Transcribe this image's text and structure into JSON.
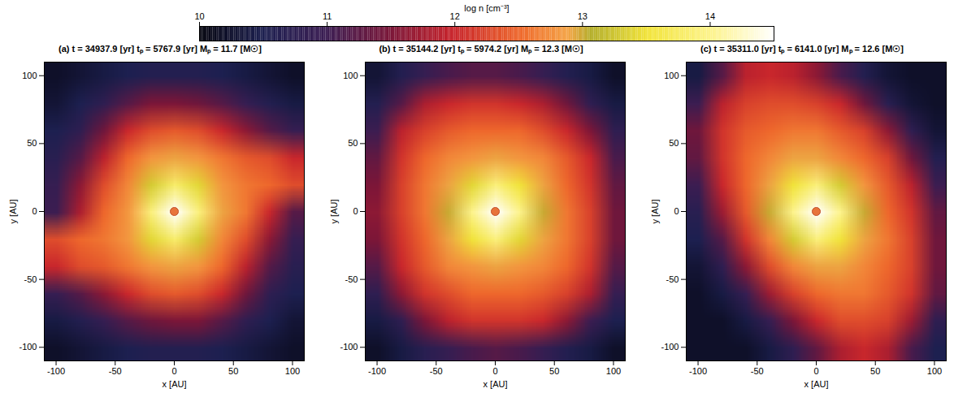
{
  "chart_data": {
    "type": "heatmap",
    "colorbar": {
      "label": "log n [cm⁻³]",
      "range": [
        10,
        14.5
      ],
      "ticks": [
        10,
        11,
        12,
        13,
        14
      ]
    },
    "panels": [
      {
        "title": "(a) t = 34937.9 [yr]   tₚ = 5767.9 [yr]   Mₚ = 11.7 [M☉]",
        "x_label": "x [AU]",
        "y_label": "y [AU]",
        "xlim": [
          -110,
          110
        ],
        "ylim": [
          -110,
          110
        ],
        "xticks": [
          -100,
          -50,
          0,
          50,
          100
        ],
        "yticks": [
          -100,
          -50,
          0,
          50,
          100
        ],
        "sink": {
          "x": 0,
          "y": 0
        },
        "x": [
          -100,
          -80,
          -60,
          -40,
          -20,
          0,
          20,
          40,
          60,
          80,
          100
        ],
        "y": [
          100,
          80,
          60,
          40,
          20,
          0,
          -20,
          -40,
          -60,
          -80,
          -100
        ],
        "values": [
          [
            10.2,
            10.3,
            10.4,
            10.5,
            10.6,
            10.6,
            10.6,
            10.5,
            10.4,
            10.3,
            10.2
          ],
          [
            10.3,
            10.5,
            10.8,
            11.2,
            11.5,
            11.5,
            11.4,
            11.2,
            10.9,
            10.6,
            10.4
          ],
          [
            10.5,
            10.8,
            11.4,
            12.0,
            12.3,
            12.4,
            12.3,
            12.0,
            11.6,
            11.2,
            10.9
          ],
          [
            10.7,
            11.2,
            11.9,
            12.5,
            12.8,
            12.9,
            12.8,
            12.6,
            12.4,
            12.3,
            12.0
          ],
          [
            10.9,
            11.6,
            12.3,
            12.7,
            13.3,
            13.8,
            13.4,
            12.8,
            12.6,
            12.5,
            12.3
          ],
          [
            11.0,
            11.8,
            12.5,
            12.8,
            13.9,
            14.5,
            13.9,
            12.9,
            12.6,
            12.0,
            11.2
          ],
          [
            12.3,
            12.5,
            12.6,
            12.8,
            13.4,
            13.8,
            13.3,
            12.7,
            12.3,
            11.6,
            10.9
          ],
          [
            12.0,
            12.3,
            12.4,
            12.6,
            12.8,
            12.9,
            12.8,
            12.5,
            11.9,
            11.2,
            10.7
          ],
          [
            10.9,
            11.2,
            11.6,
            12.0,
            12.3,
            12.4,
            12.3,
            12.0,
            11.4,
            10.8,
            10.5
          ],
          [
            10.4,
            10.6,
            10.9,
            11.2,
            11.4,
            11.5,
            11.5,
            11.2,
            10.8,
            10.5,
            10.3
          ],
          [
            10.2,
            10.3,
            10.4,
            10.5,
            10.6,
            10.6,
            10.6,
            10.5,
            10.4,
            10.3,
            10.2
          ]
        ]
      },
      {
        "title": "(b) t = 35144.2 [yr]   tₚ = 5974.2 [yr]   Mₚ = 12.3 [M☉]",
        "x_label": "x [AU]",
        "y_label": "y [AU]",
        "xlim": [
          -110,
          110
        ],
        "ylim": [
          -110,
          110
        ],
        "xticks": [
          -100,
          -50,
          0,
          50,
          100
        ],
        "yticks": [
          -100,
          -50,
          0,
          50,
          100
        ],
        "sink": {
          "x": 0,
          "y": 0
        },
        "x": [
          -100,
          -80,
          -60,
          -40,
          -20,
          0,
          20,
          40,
          60,
          80,
          100
        ],
        "y": [
          100,
          80,
          60,
          40,
          20,
          0,
          -20,
          -40,
          -60,
          -80,
          -100
        ],
        "values": [
          [
            10.3,
            10.6,
            10.9,
            11.1,
            11.2,
            11.2,
            11.1,
            10.9,
            10.6,
            10.4,
            10.2
          ],
          [
            10.6,
            11.2,
            11.8,
            12.0,
            12.1,
            12.1,
            12.0,
            11.8,
            11.4,
            10.8,
            10.4
          ],
          [
            11.0,
            11.9,
            12.2,
            12.4,
            12.5,
            12.5,
            12.5,
            12.3,
            12.0,
            11.5,
            10.8
          ],
          [
            11.3,
            12.1,
            12.5,
            12.7,
            12.8,
            12.9,
            12.8,
            12.7,
            12.4,
            12.0,
            11.1
          ],
          [
            11.5,
            12.2,
            12.6,
            12.9,
            13.4,
            13.9,
            13.5,
            12.9,
            12.5,
            12.1,
            11.3
          ],
          [
            11.6,
            12.2,
            12.6,
            13.0,
            14.0,
            14.5,
            14.0,
            13.0,
            12.6,
            12.2,
            11.4
          ],
          [
            11.5,
            12.1,
            12.5,
            12.9,
            13.5,
            13.9,
            13.4,
            12.9,
            12.6,
            12.2,
            11.4
          ],
          [
            11.2,
            12.0,
            12.4,
            12.7,
            12.8,
            12.9,
            12.8,
            12.7,
            12.5,
            12.1,
            11.2
          ],
          [
            10.8,
            11.6,
            12.1,
            12.3,
            12.5,
            12.5,
            12.5,
            12.4,
            12.2,
            11.8,
            10.9
          ],
          [
            10.4,
            10.8,
            11.5,
            11.9,
            12.1,
            12.1,
            12.1,
            12.0,
            11.6,
            11.0,
            10.5
          ],
          [
            10.2,
            10.4,
            10.7,
            10.9,
            11.1,
            11.2,
            11.1,
            10.9,
            10.6,
            10.4,
            10.2
          ]
        ]
      },
      {
        "title": "(c) t = 35311.0 [yr]   tₚ = 6141.0 [yr]   Mₚ = 12.6 [M☉]",
        "x_label": "x [AU]",
        "y_label": "y [AU]",
        "xlim": [
          -110,
          110
        ],
        "ylim": [
          -110,
          110
        ],
        "xticks": [
          -100,
          -50,
          0,
          50,
          100
        ],
        "yticks": [
          -100,
          -50,
          0,
          50,
          100
        ],
        "sink": {
          "x": 0,
          "y": 0
        },
        "x": [
          -100,
          -80,
          -60,
          -40,
          -20,
          0,
          20,
          40,
          60,
          80,
          100
        ],
        "y": [
          100,
          80,
          60,
          40,
          20,
          0,
          -20,
          -40,
          -60,
          -80,
          -100
        ],
        "values": [
          [
            10.4,
            11.2,
            11.9,
            12.0,
            11.9,
            11.6,
            11.1,
            10.6,
            10.3,
            10.2,
            10.2
          ],
          [
            11.0,
            11.9,
            12.2,
            12.3,
            12.3,
            12.2,
            12.0,
            11.4,
            10.7,
            10.3,
            10.2
          ],
          [
            11.4,
            12.1,
            12.4,
            12.5,
            12.6,
            12.6,
            12.4,
            12.2,
            11.6,
            10.8,
            10.3
          ],
          [
            11.3,
            12.1,
            12.5,
            12.7,
            12.9,
            12.9,
            12.7,
            12.5,
            12.2,
            11.4,
            10.6
          ],
          [
            11.0,
            12.0,
            12.5,
            12.9,
            13.5,
            13.9,
            13.3,
            12.8,
            12.4,
            11.9,
            11.0
          ],
          [
            10.7,
            11.7,
            12.4,
            13.0,
            14.0,
            14.5,
            14.0,
            13.0,
            12.5,
            12.1,
            11.3
          ],
          [
            10.5,
            11.2,
            12.1,
            12.7,
            13.3,
            13.9,
            13.5,
            12.9,
            12.6,
            12.2,
            11.4
          ],
          [
            10.3,
            10.8,
            11.6,
            12.3,
            12.7,
            12.9,
            12.9,
            12.7,
            12.5,
            12.2,
            11.4
          ],
          [
            10.2,
            10.4,
            10.9,
            11.7,
            12.2,
            12.5,
            12.6,
            12.6,
            12.4,
            12.1,
            11.3
          ],
          [
            10.2,
            10.2,
            10.4,
            10.9,
            11.5,
            12.0,
            12.3,
            12.3,
            12.2,
            11.7,
            10.8
          ],
          [
            10.2,
            10.2,
            10.2,
            10.4,
            10.8,
            11.3,
            11.8,
            12.0,
            11.8,
            11.1,
            10.5
          ]
        ]
      }
    ]
  }
}
